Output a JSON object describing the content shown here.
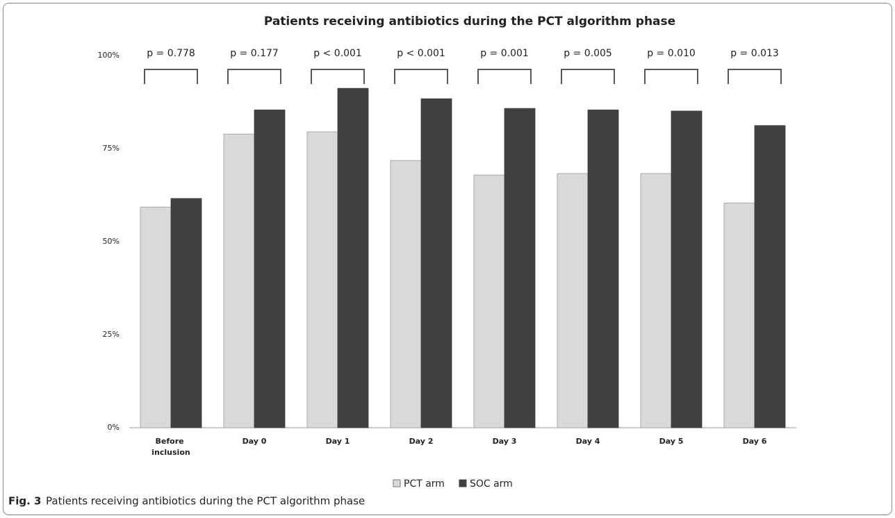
{
  "chart_data": {
    "type": "bar",
    "title": "Patients receiving antibiotics during the PCT algorithm phase",
    "categories": [
      "Before inclusion",
      "Day 0",
      "Day 1",
      "Day 2",
      "Day 3",
      "Day 4",
      "Day 5",
      "Day 6"
    ],
    "series": [
      {
        "name": "PCT arm",
        "color": "#d9d9d9",
        "values": [
          59.3,
          78.9,
          79.5,
          71.8,
          67.9,
          68.3,
          68.3,
          60.4
        ]
      },
      {
        "name": "SOC arm",
        "color": "#404040",
        "values": [
          61.6,
          85.4,
          91.2,
          88.4,
          85.8,
          85.4,
          85.1,
          81.2
        ]
      }
    ],
    "annotations": [
      "p = 0.778",
      "p = 0.177",
      "p < 0.001",
      "p < 0.001",
      "p = 0.001",
      "p = 0.005",
      "p = 0.010",
      "p = 0.013"
    ],
    "ylim": [
      0,
      100
    ],
    "yticks": [
      {
        "value": 0,
        "label": "0%"
      },
      {
        "value": 25,
        "label": "25%"
      },
      {
        "value": 50,
        "label": "50%"
      },
      {
        "value": 75,
        "label": "75%"
      },
      {
        "value": 100,
        "label": "100%"
      }
    ],
    "grid": false,
    "legend": "bottom"
  },
  "caption": {
    "label": "Fig. 3",
    "text": "Patients receiving antibiotics during the PCT algorithm phase"
  }
}
